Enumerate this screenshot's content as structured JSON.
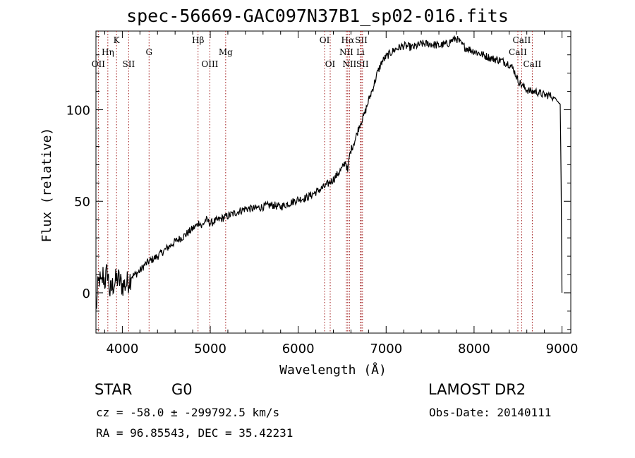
{
  "chart_data": {
    "type": "line",
    "title": "spec-56669-GAC097N37B1_sp02-016.fits",
    "xlabel": "Wavelength (Å)",
    "ylabel": "Flux (relative)",
    "xlim": [
      3700,
      9100
    ],
    "ylim": [
      -22,
      143
    ],
    "xticks": [
      4000,
      5000,
      6000,
      7000,
      8000,
      9000
    ],
    "yticks": [
      0,
      50,
      100
    ],
    "grid": false,
    "series": [
      {
        "name": "flux",
        "x": [
          3700,
          3720,
          3740,
          3760,
          3780,
          3800,
          3830,
          3860,
          3900,
          3950,
          4000,
          4050,
          4100,
          4150,
          4200,
          4250,
          4300,
          4400,
          4500,
          4600,
          4700,
          4800,
          4850,
          4880,
          4900,
          4950,
          5000,
          5100,
          5200,
          5300,
          5400,
          5500,
          5600,
          5700,
          5800,
          5900,
          6000,
          6100,
          6200,
          6300,
          6400,
          6500,
          6540,
          6563,
          6580,
          6600,
          6650,
          6700,
          6750,
          6800,
          6850,
          6900,
          6950,
          7000,
          7100,
          7200,
          7300,
          7400,
          7500,
          7600,
          7700,
          7750,
          7800,
          7850,
          7900,
          8000,
          8100,
          8200,
          8300,
          8400,
          8450,
          8500,
          8550,
          8600,
          8650,
          8700,
          8750,
          8800,
          8850,
          8900,
          8950,
          8980,
          8990,
          9000
        ],
        "y": [
          -10,
          2,
          8,
          3,
          10,
          6,
          12,
          0,
          5,
          8,
          4,
          5,
          9,
          10,
          12,
          15,
          17,
          20,
          24,
          28,
          31,
          35,
          37,
          39,
          36,
          40,
          38,
          40,
          42,
          44,
          46,
          46,
          47,
          48,
          47,
          49,
          51,
          52,
          55,
          58,
          62,
          68,
          72,
          66,
          74,
          78,
          84,
          92,
          97,
          105,
          112,
          120,
          126,
          129,
          133,
          135,
          134,
          136,
          136,
          135,
          136,
          138,
          139,
          136,
          134,
          132,
          130,
          128,
          127,
          125,
          122,
          116,
          113,
          111,
          110,
          110,
          109,
          108,
          108,
          107,
          105,
          103,
          60,
          0
        ]
      }
    ],
    "lines": [
      {
        "label": "OII",
        "x": 3727,
        "row": 3
      },
      {
        "label": "Hη",
        "x": 3835,
        "row": 2
      },
      {
        "label": "K",
        "x": 3934,
        "row": 1
      },
      {
        "label": "SII",
        "x": 4072,
        "row": 3
      },
      {
        "label": "G",
        "x": 4304,
        "row": 2
      },
      {
        "label": "Hβ",
        "x": 4861,
        "row": 1
      },
      {
        "label": "OIII",
        "x": 4995,
        "row": 3
      },
      {
        "label": "Mg",
        "x": 5175,
        "row": 2
      },
      {
        "label": "OI",
        "x": 6300,
        "row": 1
      },
      {
        "label": "OI",
        "x": 6364,
        "row": 3
      },
      {
        "label": "Hα",
        "x": 6563,
        "row": 1
      },
      {
        "label": "NII",
        "x": 6548,
        "row": 2
      },
      {
        "label": "NII",
        "x": 6583,
        "row": 3
      },
      {
        "label": "SII",
        "x": 6717,
        "row": 1
      },
      {
        "label": "Li",
        "x": 6708,
        "row": 2
      },
      {
        "label": "SII",
        "x": 6731,
        "row": 3
      },
      {
        "label": "CaII",
        "x": 8498,
        "row": 2
      },
      {
        "label": "CaII",
        "x": 8542,
        "row": 1
      },
      {
        "label": "CaII",
        "x": 8662,
        "row": 3
      }
    ]
  },
  "info": {
    "object_class": "STAR",
    "subclass": "G0",
    "survey": "LAMOST DR2",
    "redshift": "cz = -58.0 ± -299792.5 km/s",
    "obs_date": "Obs-Date: 20140111",
    "coords": "RA =  96.85543, DEC =  35.42231"
  }
}
